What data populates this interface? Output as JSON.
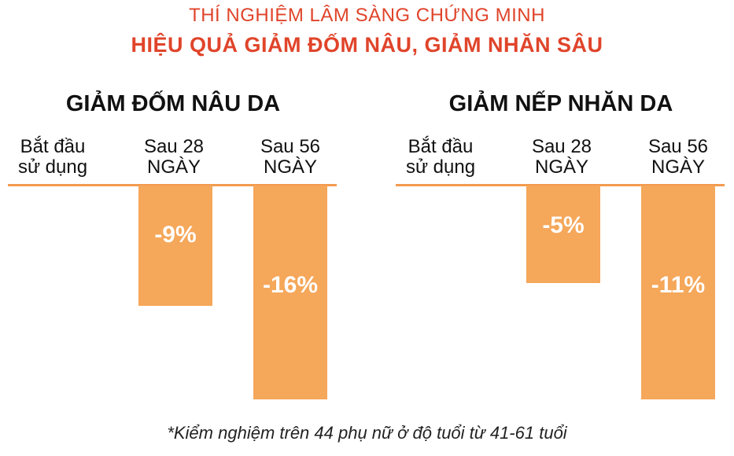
{
  "header": {
    "line1": "THÍ NGHIỆM LÂM SÀNG CHỨNG MINH",
    "line2": "HIỆU QUẢ GIẢM ĐỐM NÂU, GIẢM NHĂN SÂU"
  },
  "chart_data": [
    {
      "type": "bar",
      "title": "GIẢM ĐỐM NÂU DA",
      "categories": [
        [
          "Bắt đầu",
          "sử dụng"
        ],
        [
          "Sau 28",
          "NGÀY"
        ],
        [
          "Sau 56",
          "NGÀY"
        ]
      ],
      "values": [
        0,
        -9,
        -16
      ],
      "value_labels": [
        "",
        "-9%",
        "-16%"
      ],
      "ylim": [
        -16,
        0
      ],
      "grid": false,
      "bar_color": "#f5a75a"
    },
    {
      "type": "bar",
      "title": "GIẢM NẾP NHĂN DA",
      "categories": [
        [
          "Bắt đầu",
          "sử dụng"
        ],
        [
          "Sau 28",
          "NGÀY"
        ],
        [
          "Sau 56",
          "NGÀY"
        ]
      ],
      "values": [
        0,
        -5,
        -11
      ],
      "value_labels": [
        "",
        "-5%",
        "-11%"
      ],
      "ylim": [
        -11,
        0
      ],
      "grid": false,
      "bar_color": "#f5a75a"
    }
  ],
  "footnote": "*Kiểm nghiệm trên 44 phụ nữ ở độ tuổi từ 41-61 tuổi",
  "colors": {
    "header": "#e0442a",
    "bar": "#f5a75a",
    "baseline": "#f39b4f"
  }
}
